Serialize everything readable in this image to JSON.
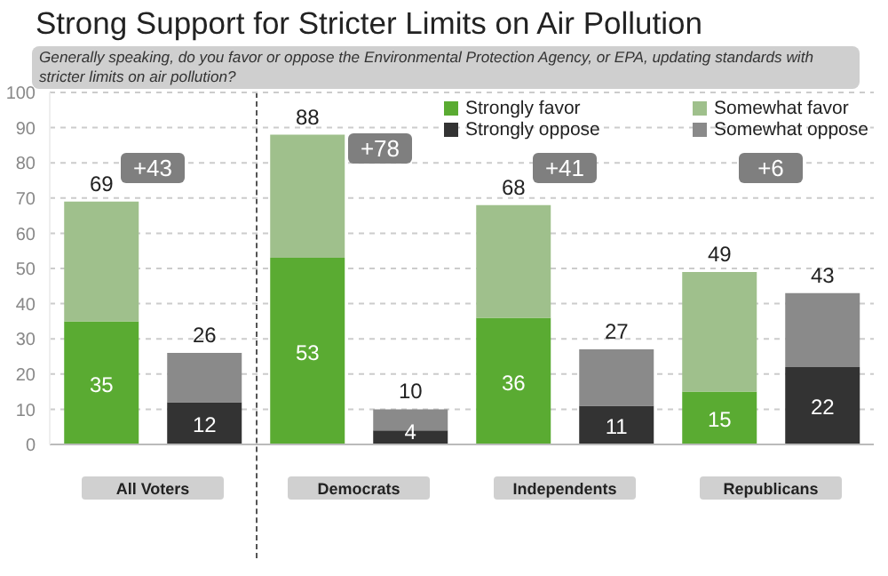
{
  "chart_data": {
    "type": "bar",
    "title": "Strong Support for Stricter Limits on Air Pollution",
    "subtitle": "Generally speaking, do you favor or oppose the Environmental Protection Agency, or EPA, updating standards with stricter limits on air pollution?",
    "categories": [
      "All Voters",
      null,
      "Democrats",
      null,
      "Independents",
      null,
      "Republicans",
      null
    ],
    "series": [
      {
        "name": "Strongly favor",
        "color": "#5aab32",
        "values": [
          35,
          null,
          53,
          null,
          36,
          null,
          15,
          null
        ],
        "value_labels": [
          "35",
          null,
          "53",
          null,
          "36",
          null,
          "15",
          null
        ]
      },
      {
        "name": "Somewhat favor",
        "color": "#9fc08c",
        "values": [
          34,
          null,
          35,
          null,
          32,
          null,
          34,
          null
        ]
      },
      {
        "name": "Strongly oppose",
        "color": "#333333",
        "values": [
          null,
          12,
          null,
          4,
          null,
          11,
          null,
          22
        ],
        "value_labels": [
          null,
          "12",
          null,
          "4",
          null,
          "11",
          null,
          "22"
        ]
      },
      {
        "name": "Somewhat oppose",
        "color": "#8a8a8a",
        "values": [
          null,
          14,
          null,
          6,
          null,
          16,
          null,
          21
        ]
      }
    ],
    "stacked": true,
    "totals": [
      "69",
      "26",
      "88",
      "10",
      "68",
      "27",
      "49",
      "43"
    ],
    "annotations": [
      "+43",
      "+78",
      "+41",
      "+6"
    ],
    "ylim": [
      0,
      100
    ],
    "yticks": [
      0,
      10,
      20,
      30,
      40,
      50,
      60,
      70,
      80,
      90,
      100
    ],
    "grid": "y",
    "legend": "top right"
  }
}
